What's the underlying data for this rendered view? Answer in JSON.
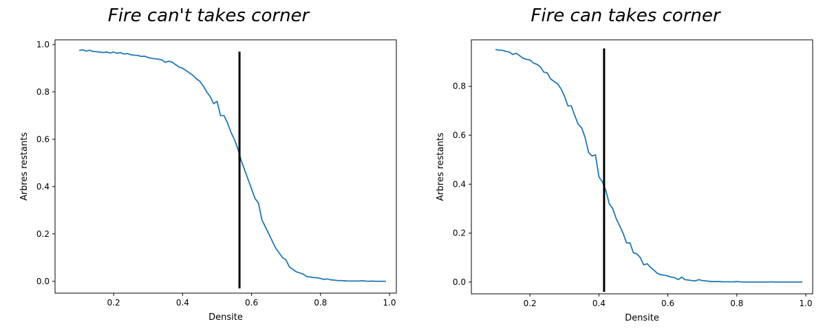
{
  "chart_data": [
    {
      "type": "line",
      "title": "Fire can't takes corner",
      "xlabel": "Densite",
      "ylabel": "Arbres restants",
      "xlim": [
        0.03,
        1.02
      ],
      "ylim": [
        -0.05,
        1.02
      ],
      "xticks": [
        0.2,
        0.4,
        0.6,
        0.8,
        1.0
      ],
      "xtick_labels": [
        "0.2",
        "0.4",
        "0.6",
        "0.8",
        "1.0"
      ],
      "yticks": [
        0.0,
        0.2,
        0.4,
        0.6,
        0.8,
        1.0
      ],
      "ytick_labels": [
        "0.0",
        "0.2",
        "0.4",
        "0.6",
        "0.8",
        "1.0"
      ],
      "grid": false,
      "series": [
        {
          "color": "#1f77b4",
          "x": [
            0.1,
            0.11,
            0.12,
            0.13,
            0.14,
            0.15,
            0.16,
            0.17,
            0.18,
            0.19,
            0.2,
            0.21,
            0.22,
            0.23,
            0.24,
            0.25,
            0.26,
            0.27,
            0.28,
            0.29,
            0.3,
            0.31,
            0.32,
            0.33,
            0.34,
            0.35,
            0.36,
            0.37,
            0.38,
            0.39,
            0.4,
            0.41,
            0.42,
            0.43,
            0.44,
            0.45,
            0.46,
            0.47,
            0.48,
            0.49,
            0.5,
            0.51,
            0.52,
            0.53,
            0.54,
            0.55,
            0.56,
            0.57,
            0.58,
            0.59,
            0.6,
            0.61,
            0.62,
            0.63,
            0.64,
            0.65,
            0.66,
            0.67,
            0.68,
            0.69,
            0.7,
            0.71,
            0.72,
            0.73,
            0.74,
            0.75,
            0.76,
            0.77,
            0.78,
            0.79,
            0.8,
            0.81,
            0.82,
            0.83,
            0.84,
            0.85,
            0.86,
            0.87,
            0.88,
            0.89,
            0.9,
            0.91,
            0.92,
            0.93,
            0.94,
            0.95,
            0.96,
            0.97,
            0.98,
            0.99
          ],
          "y": [
            0.975,
            0.978,
            0.972,
            0.976,
            0.971,
            0.97,
            0.968,
            0.966,
            0.969,
            0.964,
            0.968,
            0.963,
            0.966,
            0.96,
            0.962,
            0.957,
            0.955,
            0.954,
            0.95,
            0.951,
            0.945,
            0.942,
            0.94,
            0.938,
            0.935,
            0.925,
            0.93,
            0.925,
            0.915,
            0.905,
            0.9,
            0.89,
            0.88,
            0.87,
            0.855,
            0.845,
            0.825,
            0.8,
            0.78,
            0.75,
            0.76,
            0.7,
            0.7,
            0.67,
            0.63,
            0.6,
            0.56,
            0.51,
            0.47,
            0.43,
            0.39,
            0.35,
            0.33,
            0.26,
            0.23,
            0.2,
            0.17,
            0.14,
            0.12,
            0.1,
            0.09,
            0.06,
            0.05,
            0.04,
            0.035,
            0.03,
            0.02,
            0.018,
            0.016,
            0.015,
            0.012,
            0.008,
            0.01,
            0.006,
            0.005,
            0.003,
            0.003,
            0.002,
            0.001,
            0.001,
            0.001,
            0.001,
            0.002,
            0.001,
            0.0,
            0.001,
            0.0,
            0.0,
            0.0,
            0.0
          ]
        }
      ],
      "vline": {
        "x": 0.565,
        "ymin": -0.03,
        "ymax": 0.97,
        "color": "#000000"
      }
    },
    {
      "type": "line",
      "title": "Fire can takes corner",
      "xlabel": "Densite",
      "ylabel": "Arbres restants",
      "xlim": [
        0.03,
        1.02
      ],
      "ylim": [
        -0.048,
        0.99
      ],
      "xticks": [
        0.2,
        0.4,
        0.6,
        0.8,
        1.0
      ],
      "xtick_labels": [
        "0.2",
        "0.4",
        "0.6",
        "0.8",
        "1.0"
      ],
      "yticks": [
        0.0,
        0.2,
        0.4,
        0.6,
        0.8
      ],
      "ytick_labels": [
        "0.0",
        "0.2",
        "0.4",
        "0.6",
        "0.8"
      ],
      "grid": false,
      "series": [
        {
          "color": "#1f77b4",
          "x": [
            0.1,
            0.11,
            0.12,
            0.13,
            0.14,
            0.15,
            0.16,
            0.17,
            0.18,
            0.19,
            0.2,
            0.21,
            0.22,
            0.23,
            0.24,
            0.25,
            0.26,
            0.27,
            0.28,
            0.29,
            0.3,
            0.31,
            0.32,
            0.33,
            0.34,
            0.35,
            0.36,
            0.37,
            0.38,
            0.39,
            0.4,
            0.41,
            0.42,
            0.43,
            0.44,
            0.45,
            0.46,
            0.47,
            0.48,
            0.49,
            0.5,
            0.51,
            0.52,
            0.53,
            0.54,
            0.55,
            0.56,
            0.57,
            0.58,
            0.59,
            0.6,
            0.61,
            0.62,
            0.63,
            0.64,
            0.65,
            0.66,
            0.67,
            0.68,
            0.69,
            0.7,
            0.71,
            0.72,
            0.73,
            0.74,
            0.75,
            0.76,
            0.77,
            0.78,
            0.79,
            0.8,
            0.81,
            0.82,
            0.83,
            0.84,
            0.85,
            0.86,
            0.87,
            0.88,
            0.89,
            0.9,
            0.91,
            0.92,
            0.93,
            0.94,
            0.95,
            0.96,
            0.97,
            0.98,
            0.99
          ],
          "y": [
            0.95,
            0.948,
            0.947,
            0.943,
            0.94,
            0.93,
            0.935,
            0.925,
            0.915,
            0.91,
            0.908,
            0.895,
            0.89,
            0.88,
            0.858,
            0.855,
            0.83,
            0.82,
            0.81,
            0.79,
            0.76,
            0.72,
            0.72,
            0.68,
            0.645,
            0.63,
            0.59,
            0.53,
            0.515,
            0.52,
            0.43,
            0.41,
            0.375,
            0.32,
            0.3,
            0.26,
            0.23,
            0.2,
            0.16,
            0.16,
            0.12,
            0.115,
            0.1,
            0.07,
            0.075,
            0.06,
            0.048,
            0.035,
            0.03,
            0.028,
            0.025,
            0.02,
            0.018,
            0.01,
            0.02,
            0.01,
            0.008,
            0.006,
            0.005,
            0.01,
            0.006,
            0.005,
            0.003,
            0.002,
            0.002,
            0.002,
            0.001,
            0.001,
            0.001,
            0.001,
            0.002,
            0.001,
            0.0,
            0.0,
            0.0,
            0.0,
            0.0,
            0.0,
            0.0,
            0.0,
            0.001,
            0.0,
            0.0,
            0.0,
            0.0,
            0.0,
            0.0,
            0.0,
            0.0,
            0.0
          ]
        }
      ],
      "vline": {
        "x": 0.415,
        "ymin": -0.04,
        "ymax": 0.955,
        "color": "#000000"
      }
    }
  ]
}
